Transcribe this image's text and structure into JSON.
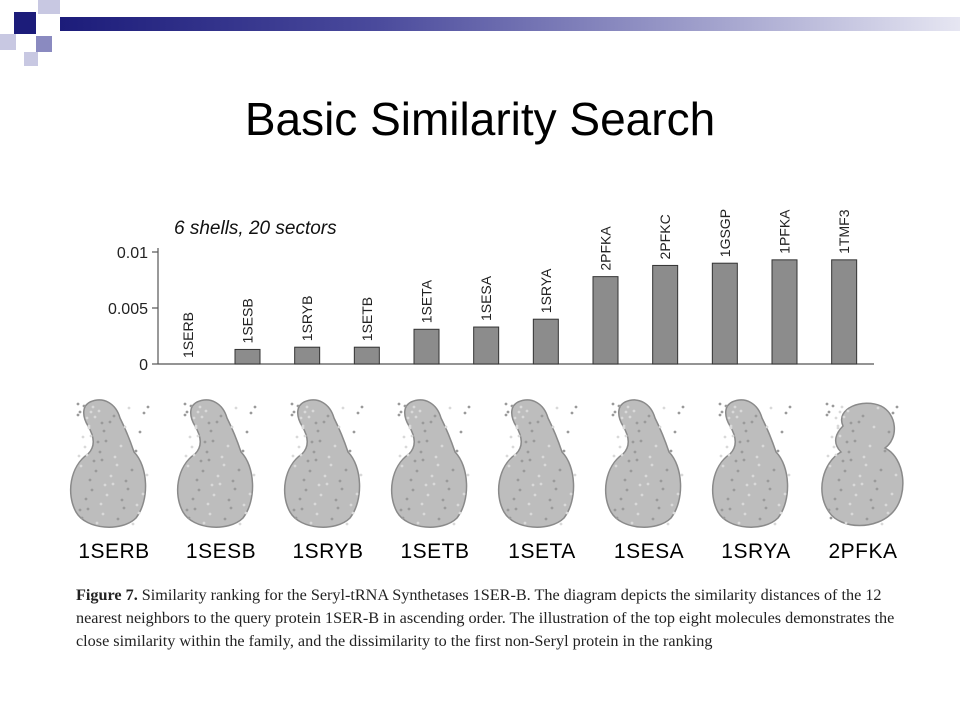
{
  "slide": {
    "title": "Basic Similarity Search",
    "deco_colors": {
      "dark": "#1c1c7a",
      "light": "#a8a8d0",
      "bar": "#3a3a90"
    }
  },
  "chart_data": {
    "type": "bar",
    "title": "6 shells, 20 sectors",
    "xlabel": "",
    "ylabel": "",
    "ylim": [
      0,
      0.01
    ],
    "yticks": [
      "0.01",
      "0.005",
      "0"
    ],
    "categories": [
      "1SERB",
      "1SESB",
      "1SRYB",
      "1SETB",
      "1SETA",
      "1SESA",
      "1SRYA",
      "2PFKA",
      "2PFKC",
      "1GSGP",
      "1PFKA",
      "1TMF3"
    ],
    "values": [
      0.0,
      0.0013,
      0.0015,
      0.0015,
      0.0031,
      0.0033,
      0.004,
      0.0078,
      0.0088,
      0.009,
      0.0093,
      0.0093
    ],
    "bar_color": "#8c8c8c"
  },
  "proteins": {
    "labels": [
      "1SERB",
      "1SESB",
      "1SRYB",
      "1SETB",
      "1SETA",
      "1SESA",
      "1SRYA",
      "2PFKA"
    ]
  },
  "caption": {
    "figure_label": "Figure 7.",
    "text": " Similarity ranking for the Seryl-tRNA Synthetases 1SER-B. The diagram depicts the similarity distances of the 12 nearest neighbors to the query protein 1SER-B in ascending order. The illustration of the top eight molecules demonstrates the close similarity within the family, and the dissimilarity to the first non-Seryl protein in the ranking"
  }
}
